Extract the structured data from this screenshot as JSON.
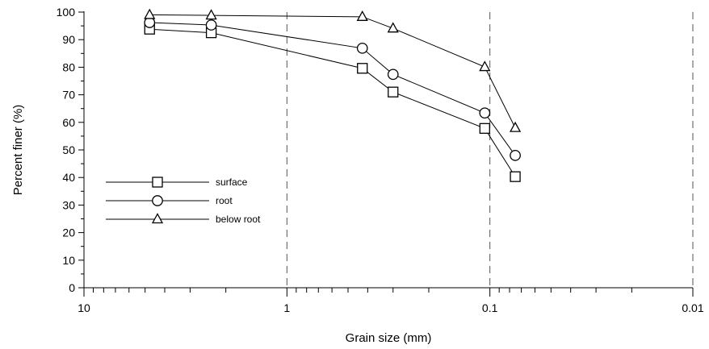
{
  "chart_data": {
    "type": "line",
    "title": "",
    "xlabel": "Grain size (mm)",
    "ylabel": "Percent finer (%)",
    "x_scale": "log",
    "x_reversed": true,
    "xlim": [
      10,
      0.01
    ],
    "ylim": [
      0,
      100
    ],
    "x_ticks": [
      10,
      1,
      0.1,
      0.01
    ],
    "x_tick_labels": [
      "10",
      "1",
      "0.1",
      "0.01"
    ],
    "y_ticks": [
      0,
      10,
      20,
      30,
      40,
      50,
      60,
      70,
      80,
      90,
      100
    ],
    "y_tick_labels": [
      "0",
      "10",
      "20",
      "30",
      "40",
      "50",
      "60",
      "70",
      "80",
      "90",
      "100"
    ],
    "grid": "vertical dashed lines at x = 1, 0.1, 0.01",
    "legend_position": "left",
    "series": [
      {
        "name": "surface",
        "marker": "square",
        "x": [
          4.75,
          2.36,
          0.425,
          0.3,
          0.106,
          0.075
        ],
        "y": [
          93.8,
          92.5,
          79.6,
          71.0,
          57.8,
          40.3
        ]
      },
      {
        "name": "root",
        "marker": "circle",
        "x": [
          4.75,
          2.36,
          0.425,
          0.3,
          0.106,
          0.075
        ],
        "y": [
          96.2,
          95.3,
          86.9,
          77.4,
          63.4,
          48.0
        ]
      },
      {
        "name": "below root",
        "marker": "triangle",
        "x": [
          4.75,
          2.36,
          0.425,
          0.3,
          0.106,
          0.075
        ],
        "y": [
          99.0,
          98.8,
          98.3,
          94.1,
          80.1,
          58.0
        ]
      }
    ]
  }
}
